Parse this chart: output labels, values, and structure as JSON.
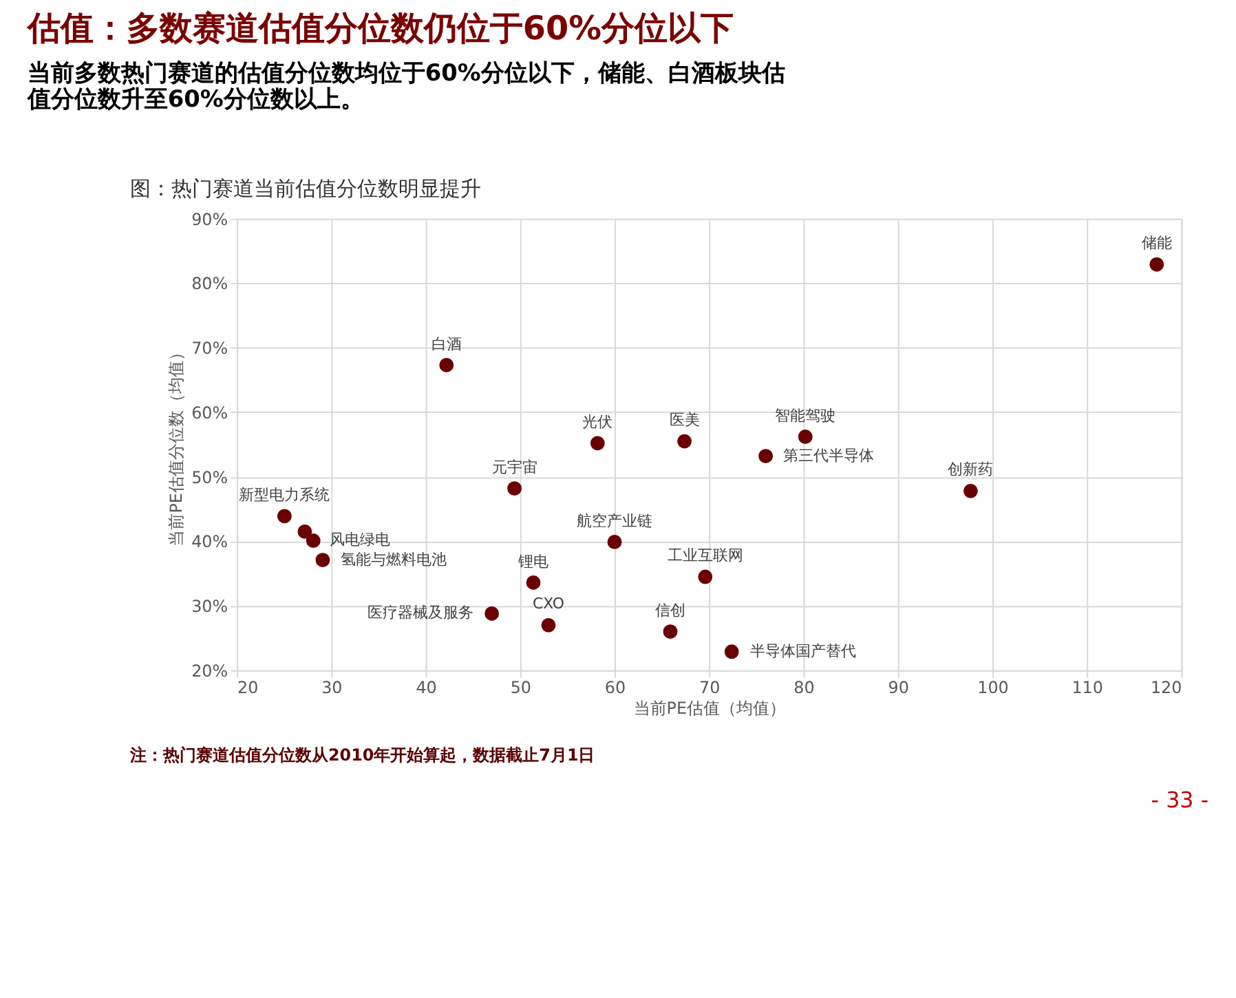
{
  "chart_data": {
    "type": "scatter",
    "title": "估值：多数赛道估值分位数仍位于60%分位以下",
    "subtitle": "当前多数热门赛道的估值分位数均位于60%分位以下，储能、白酒板块估值分位数升至60%分位数以上。",
    "xlabel": "当前PE估值（均值）",
    "ylabel": "当前PE估值分位数（均值）",
    "annotations": [
      "图：热门赛道当前估值分位数明显提升",
      "注：热门赛道估值分位数从2010年开始算起，数据截止7月1日",
      "- 33 -",
      {
        "text": "储能",
        "x": 117.4,
        "y": 82.9
      },
      {
        "text": "白酒",
        "x": 42.2,
        "y": 67.3
      },
      {
        "text": "光伏",
        "x": 58.2,
        "y": 55.2
      },
      {
        "text": "医美",
        "x": 67.4,
        "y": 55.5
      },
      {
        "text": "智能驾驶",
        "x": 80.2,
        "y": 56.2
      },
      {
        "text": "第三代半导体",
        "x": 76.0,
        "y": 53.2
      },
      {
        "text": "元宇宙",
        "x": 49.4,
        "y": 48.2
      },
      {
        "text": "创新药",
        "x": 97.7,
        "y": 47.8
      },
      {
        "text": "新型电力系统",
        "x": 25.05,
        "y": 43.9
      },
      {
        "text": "风电绿电",
        "x": 28.1,
        "y": 40.1
      },
      {
        "text": "氢能与燃料电池",
        "x": 29.1,
        "y": 37.1
      },
      {
        "text": "航空产业链",
        "x": 60.0,
        "y": 39.9
      },
      {
        "text": "锂电",
        "x": 51.4,
        "y": 33.6
      },
      {
        "text": "工业互联网",
        "x": 69.6,
        "y": 34.5
      },
      {
        "text": "医疗器械及服务",
        "x": 47.0,
        "y": 28.8
      },
      {
        "text": "CXO",
        "x": 53.0,
        "y": 27.0
      },
      {
        "text": "信创",
        "x": 65.9,
        "y": 26.0
      },
      {
        "text": "半导体国产替代",
        "x": 72.4,
        "y": 22.9
      }
    ],
    "xlim": [
      20,
      120
    ],
    "xticks": [
      20,
      30,
      40,
      50,
      60,
      70,
      80,
      90,
      100,
      110,
      120
    ],
    "ylim": [
      20,
      90
    ],
    "yticks": [
      {
        "value": 20,
        "label": "20%"
      },
      {
        "value": 30,
        "label": "30%"
      },
      {
        "value": 40,
        "label": "40%"
      },
      {
        "value": 50,
        "label": "50%"
      },
      {
        "value": 60,
        "label": "60%"
      },
      {
        "value": 70,
        "label": "70%"
      },
      {
        "value": 80,
        "label": "80%"
      },
      {
        "value": 90,
        "label": "90%"
      }
    ],
    "grid": true,
    "marker": "circle",
    "series": [
      {
        "color": "#6b0000",
        "x": [
          117.4,
          42.2,
          58.2,
          67.4,
          76.0,
          80.2,
          49.4,
          97.7,
          25.05,
          27.2,
          28.1,
          29.1,
          60.0,
          51.4,
          69.6,
          47.0,
          53.0,
          65.9,
          72.4
        ],
        "values": [
          82.9,
          67.3,
          55.2,
          55.5,
          53.2,
          56.2,
          48.2,
          47.8,
          43.9,
          41.5,
          40.1,
          37.1,
          39.9,
          33.6,
          34.5,
          28.8,
          27.0,
          26.0,
          22.9
        ]
      }
    ]
  }
}
